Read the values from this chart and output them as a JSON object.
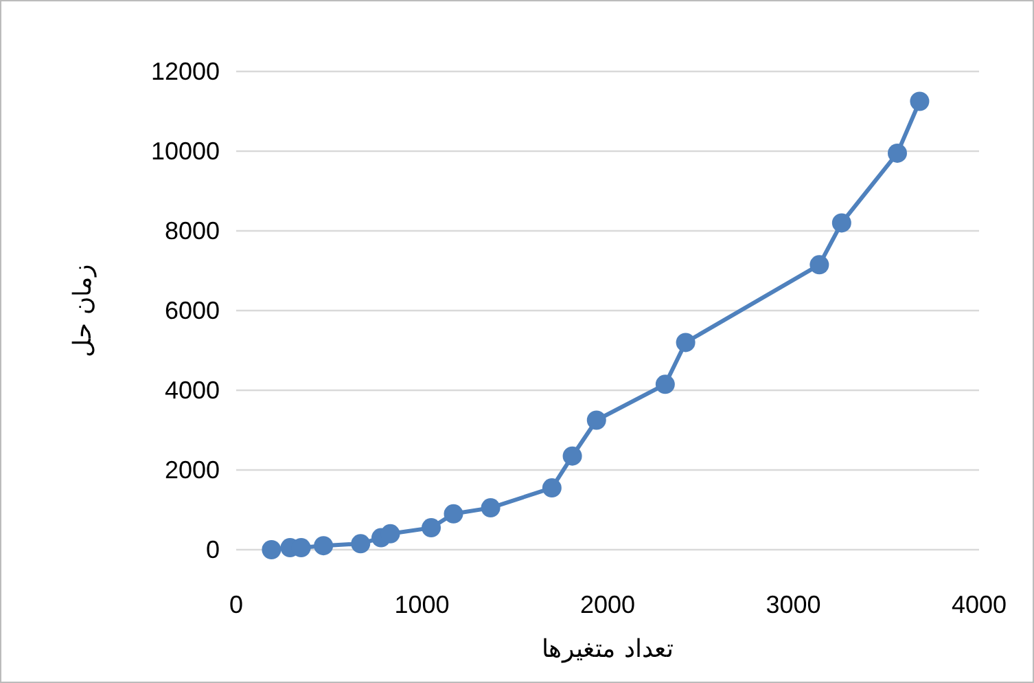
{
  "chart_data": {
    "type": "line",
    "xlabel": "تعداد متغیرها",
    "ylabel": "زمان حل",
    "x": [
      190,
      290,
      350,
      470,
      670,
      780,
      830,
      1050,
      1170,
      1370,
      1700,
      1810,
      1940,
      2310,
      2420,
      3140,
      3260,
      3560,
      3680
    ],
    "series": [
      {
        "color": "#4f81bd",
        "values": [
          0,
          50,
          50,
          100,
          150,
          300,
          400,
          550,
          900,
          1050,
          1550,
          2350,
          3250,
          4150,
          5200,
          7150,
          8200,
          9950,
          11250
        ]
      }
    ],
    "xlim": [
      0,
      4000
    ],
    "xticks": [
      0,
      1000,
      2000,
      3000,
      4000
    ],
    "ylim": [
      0,
      12000
    ],
    "yticks": [
      0,
      2000,
      4000,
      6000,
      8000,
      10000,
      12000
    ],
    "grid": "y",
    "marker": "circle",
    "line_style": "solid"
  }
}
